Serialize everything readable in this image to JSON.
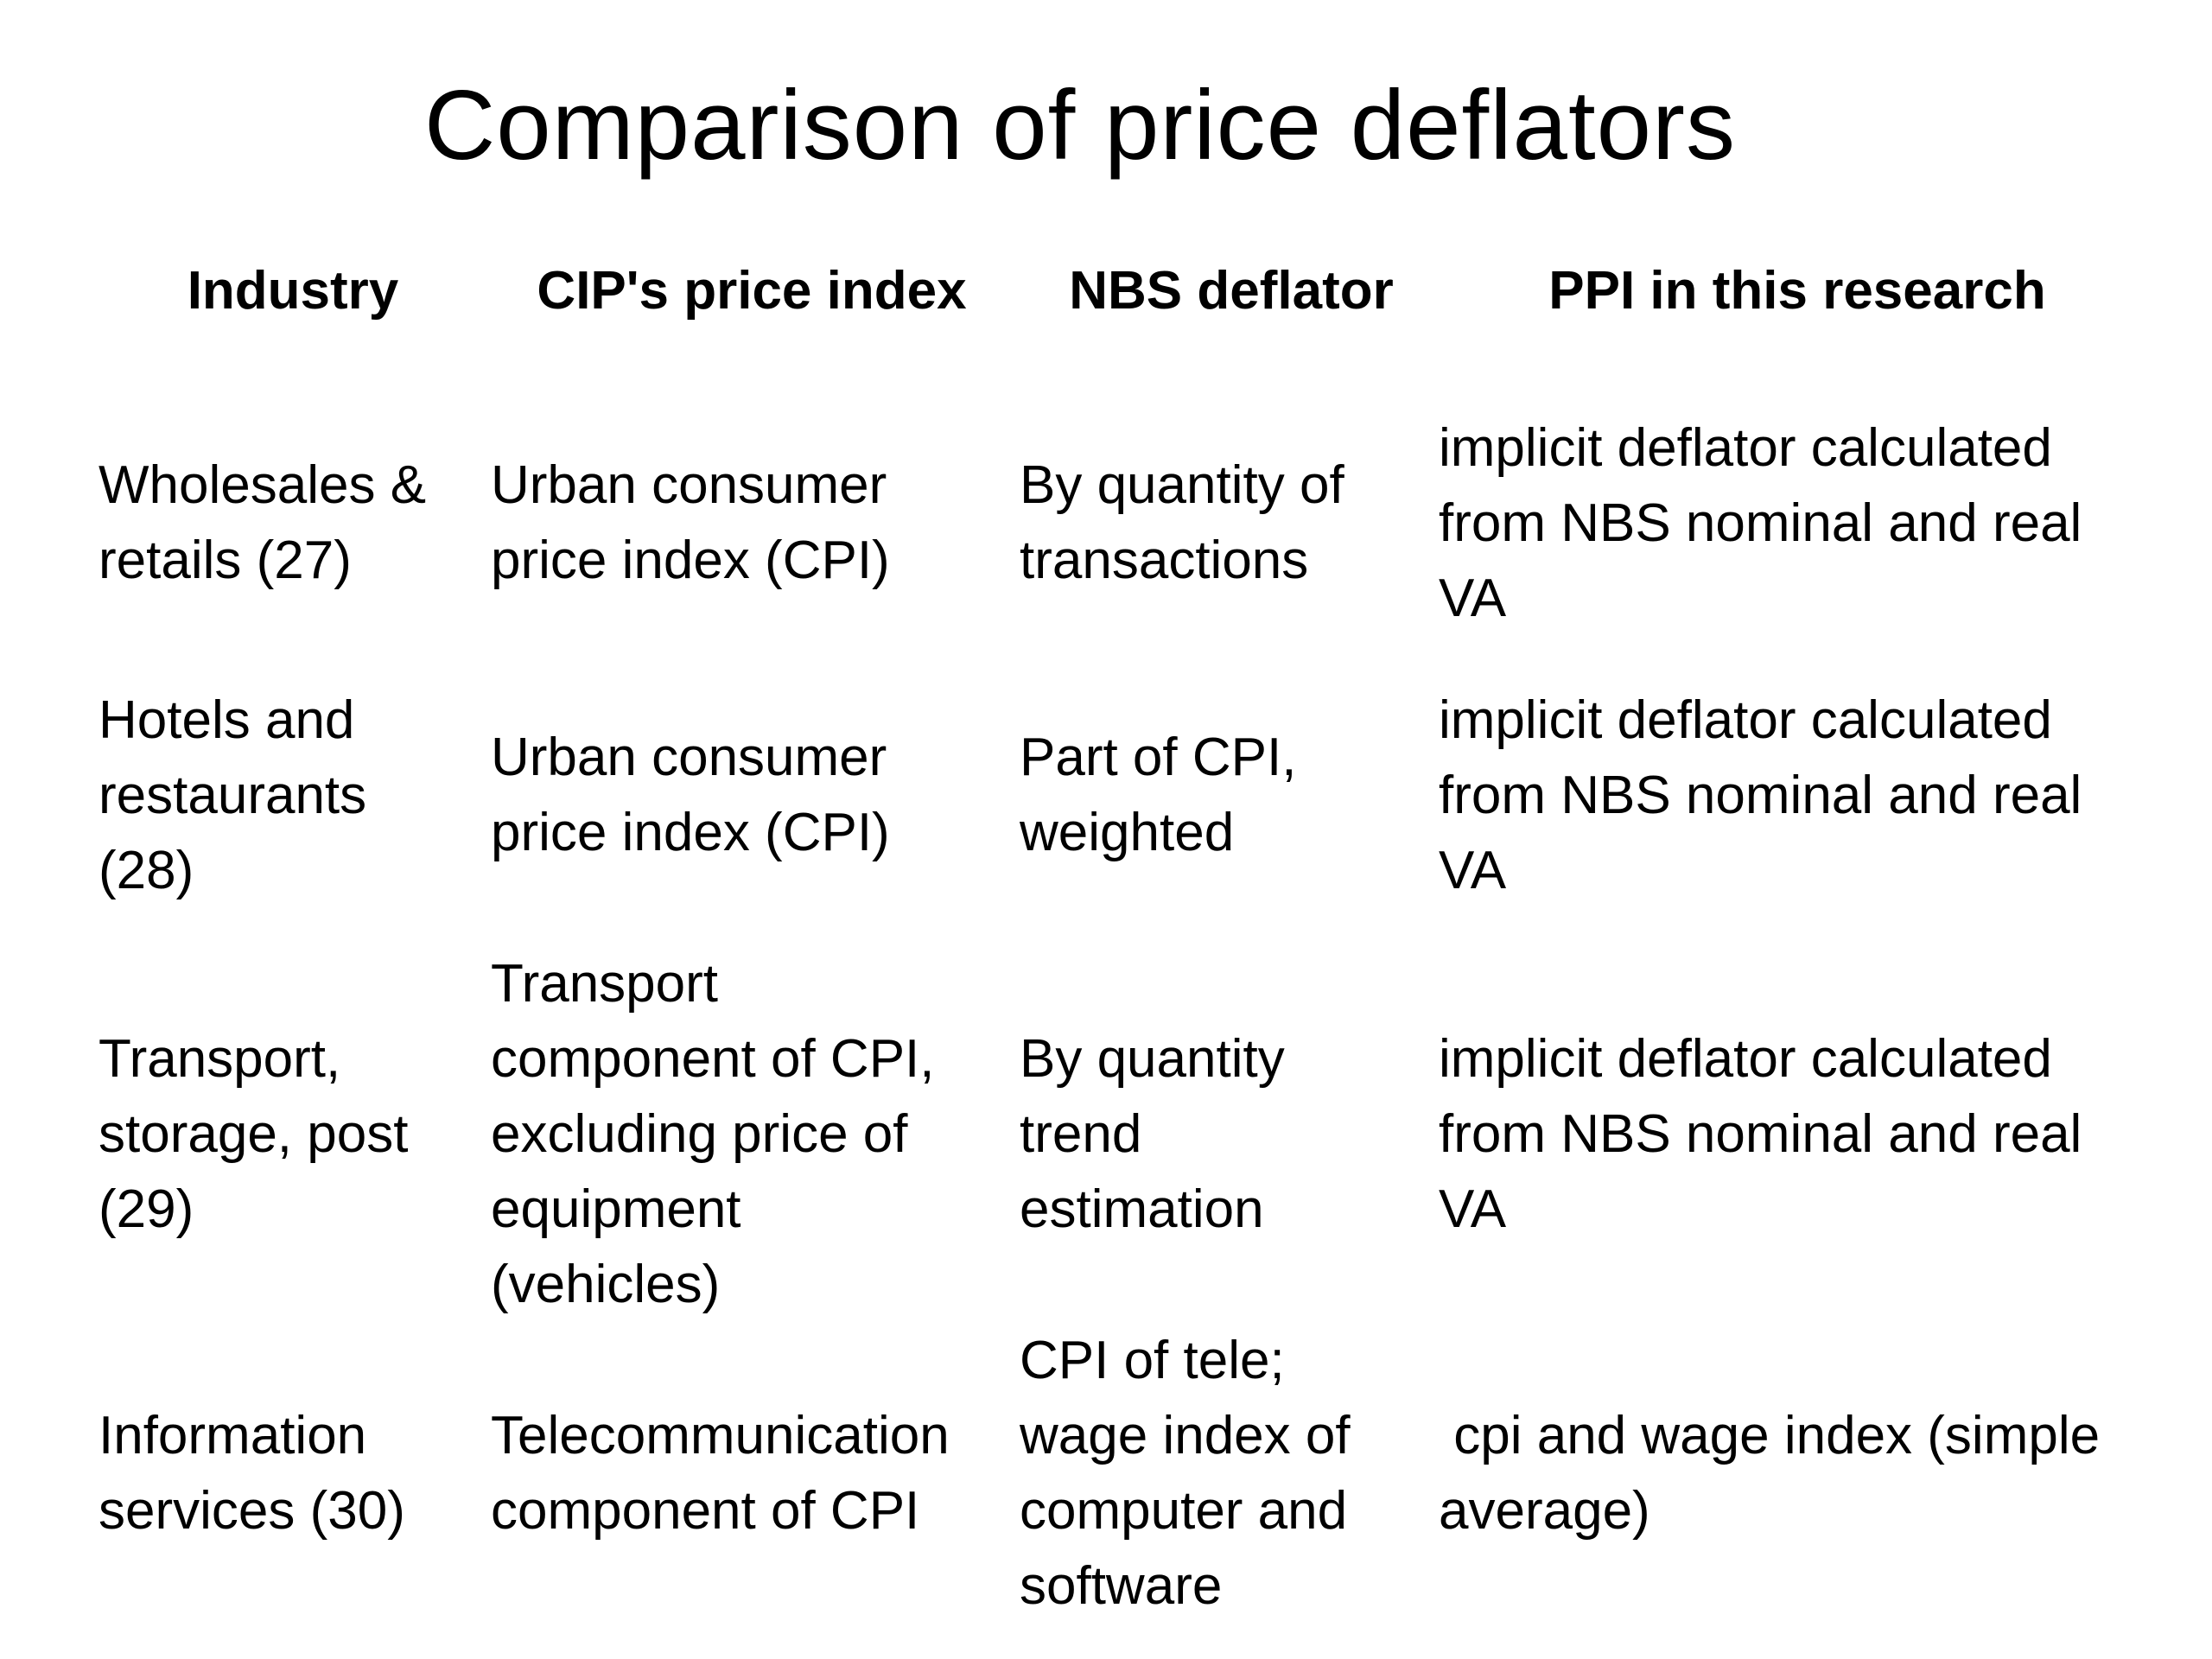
{
  "slide": {
    "title": "Comparison of price deflators"
  },
  "table": {
    "headers": [
      "Industry",
      "CIP's price index",
      "NBS deflator",
      "PPI in this research"
    ],
    "rows": [
      {
        "industry": [
          "Wholesales &",
          "retails (27)"
        ],
        "cip": [
          "Urban consumer",
          "price index (CPI)"
        ],
        "nbs": [
          "By quantity of",
          "transactions"
        ],
        "ppi": [
          "implicit deflator calculated",
          "from NBS nominal and real",
          "VA"
        ]
      },
      {
        "industry": [
          "Hotels and",
          "restaurants",
          "(28)"
        ],
        "cip": [
          "Urban consumer",
          "price index (CPI)"
        ],
        "nbs": [
          "Part of CPI,",
          "weighted"
        ],
        "ppi": [
          "implicit deflator calculated",
          "from NBS nominal and real",
          "VA"
        ]
      },
      {
        "industry": [
          "Transport,",
          "storage, post",
          "(29)"
        ],
        "cip": [
          "Transport",
          "component of CPI,",
          "excluding price of",
          "equipment",
          "(vehicles)"
        ],
        "nbs": [
          "By quantity",
          "trend",
          "estimation"
        ],
        "ppi": [
          "implicit deflator calculated",
          "from NBS nominal and real",
          "VA"
        ]
      },
      {
        "industry": [
          "Information",
          "services (30)"
        ],
        "cip": [
          "Telecommunication",
          "component of CPI"
        ],
        "nbs": [
          "CPI of tele;",
          "wage index of",
          "computer and",
          "software"
        ],
        "ppi": [
          " cpi and wage index (simple",
          "average)"
        ]
      }
    ]
  }
}
